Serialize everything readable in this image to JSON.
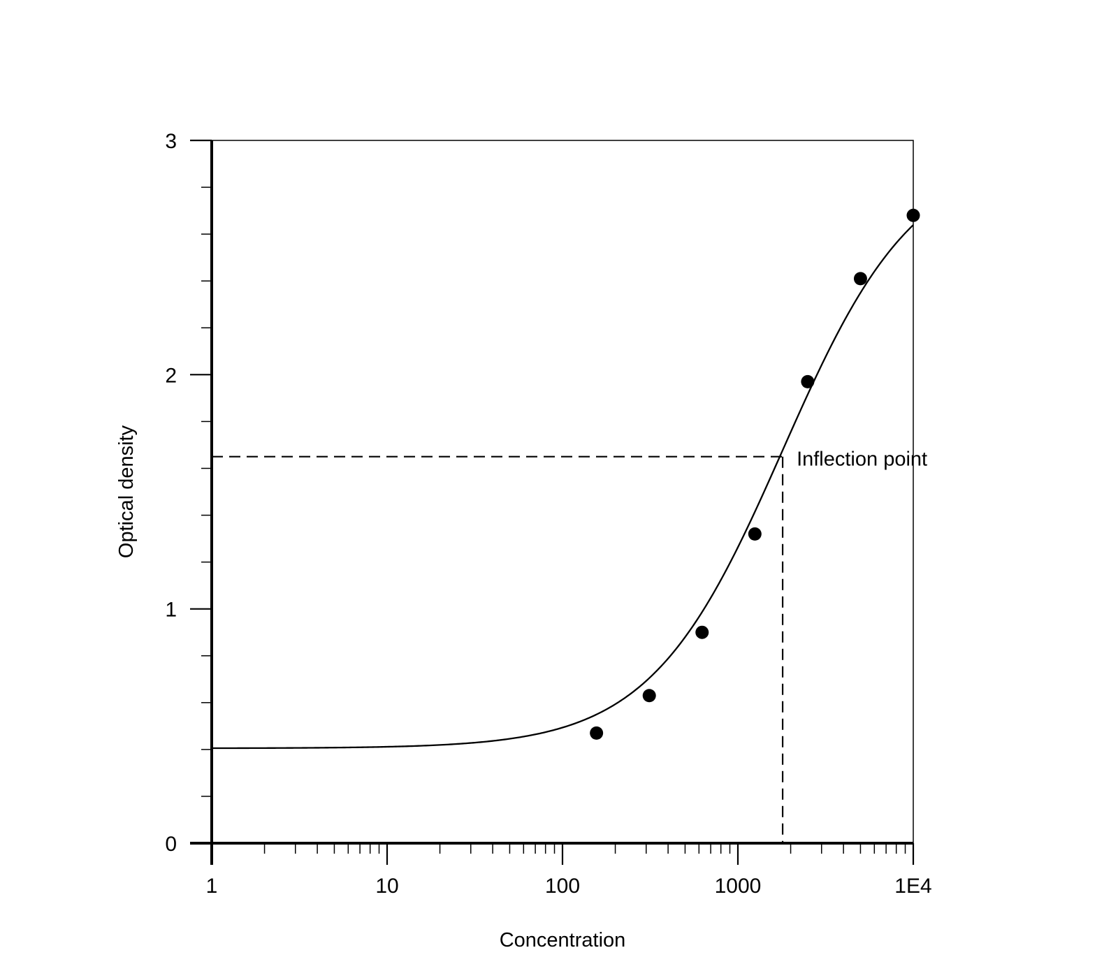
{
  "chart_data": {
    "type": "scatter",
    "xlabel": "Concentration",
    "ylabel": "Optical density",
    "x_scale": "log",
    "xlim": [
      1,
      10000
    ],
    "ylim": [
      0,
      3
    ],
    "x_tick_labels": [
      "1",
      "10",
      "100",
      "1000",
      "1E4"
    ],
    "y_tick_labels": [
      "0",
      "1",
      "2",
      "3"
    ],
    "grid": false,
    "legend": "none",
    "series": [
      {
        "type": "scatter",
        "x": [
          156.25,
          312.5,
          625,
          1250,
          2500,
          5000,
          10000
        ],
        "y": [
          0.47,
          0.63,
          0.9,
          1.32,
          1.97,
          2.41,
          2.68
        ]
      }
    ],
    "fit_curve": {
      "model": "four-parameter logistic",
      "bottom": 0.405,
      "top": 2.95,
      "ec50": 1800,
      "hill": 1.15
    },
    "inflection_point": {
      "x": 1800,
      "y": 1.65,
      "label": "Inflection point"
    },
    "colors": {
      "line": "#000000",
      "points": "#000000",
      "background": "#ffffff"
    }
  }
}
